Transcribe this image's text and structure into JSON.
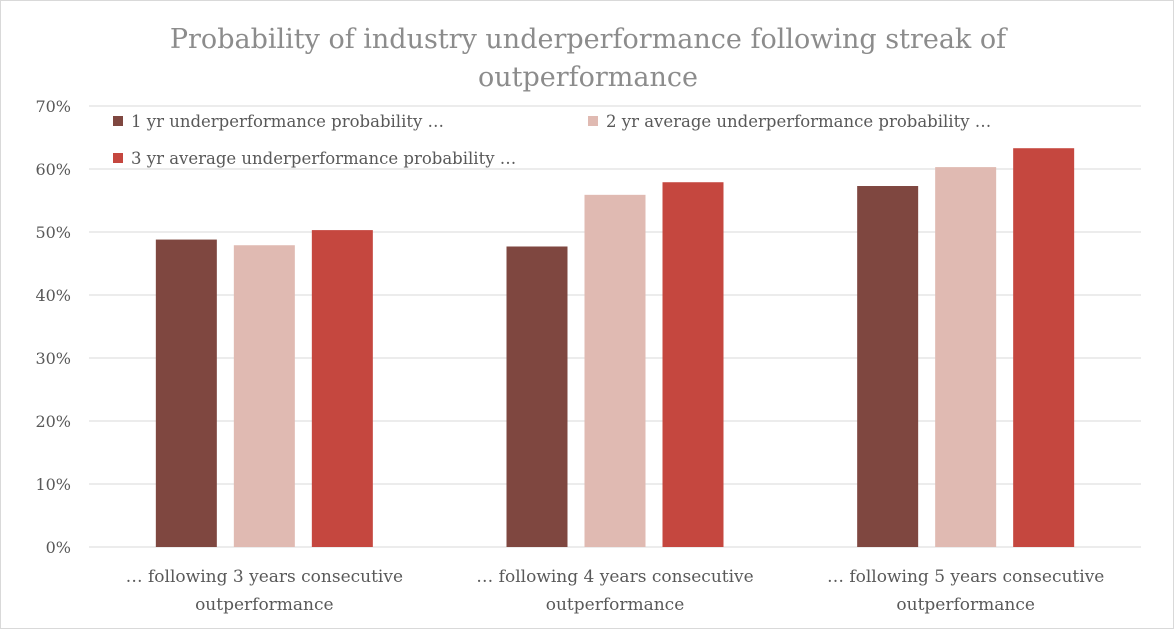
{
  "chart_data": {
    "type": "bar",
    "title": "Probability of industry underperformance following streak of outperformance",
    "title_lines": [
      "Probability of industry underperformance following streak of",
      "outperformance"
    ],
    "categories": [
      "… following 3 years consecutive outperformance",
      "… following 4 years consecutive outperformance",
      "… following 5 years consecutive outperformance"
    ],
    "category_lines": [
      [
        "… following 3 years consecutive",
        "outperformance"
      ],
      [
        "… following 4 years consecutive",
        "outperformance"
      ],
      [
        "… following 5 years consecutive",
        "outperformance"
      ]
    ],
    "series": [
      {
        "name": "1 yr underperformance probability …",
        "color": "#7f4740",
        "values": [
          0.488,
          0.477,
          0.573
        ]
      },
      {
        "name": "2 yr average underperformance probability …",
        "color": "#e0bab2",
        "values": [
          0.479,
          0.559,
          0.603
        ]
      },
      {
        "name": "3 yr average underperformance  probability …",
        "color": "#c5473f",
        "values": [
          0.503,
          0.579,
          0.633
        ]
      }
    ],
    "yticks": [
      "0%",
      "10%",
      "20%",
      "30%",
      "40%",
      "50%",
      "60%",
      "70%"
    ],
    "ylim": [
      0,
      0.7
    ],
    "xlabel": "",
    "ylabel": "",
    "grid": true,
    "legend": "top-left",
    "colors": {
      "grid": "#d9d9d9",
      "text": "#595959",
      "title": "#8c8c8c"
    }
  }
}
